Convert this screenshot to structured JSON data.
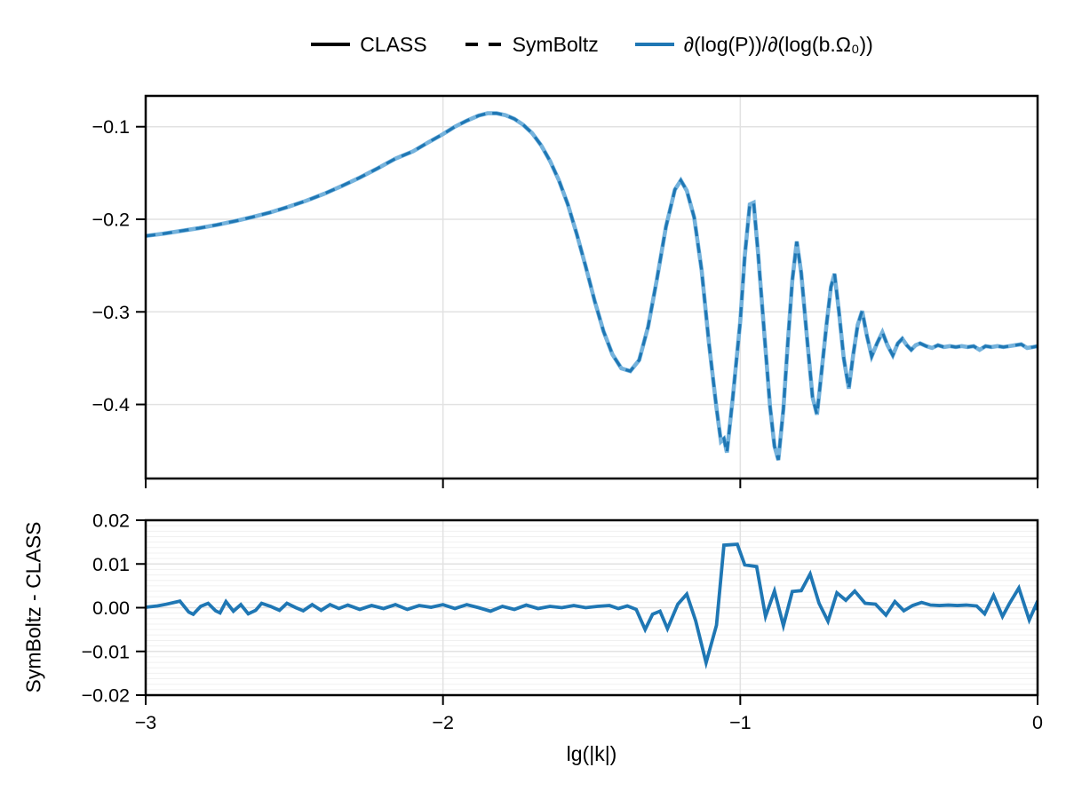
{
  "colors": {
    "class_line": "#74b2dc",
    "symboltz_line": "#1f77b4",
    "residual_line": "#1f77b4",
    "frame": "#000000",
    "grid_major": "#e2e2e2",
    "grid_minor": "#f0f0f0",
    "background": "#ffffff"
  },
  "legend": {
    "items": [
      {
        "label": "CLASS",
        "color": "#000000",
        "dash": null
      },
      {
        "label": "SymBoltz",
        "color": "#000000",
        "dash": "14 12"
      },
      {
        "label": "∂(log(P))/∂(log(b.Ω₀))",
        "color": "#1f77b4",
        "dash": null
      }
    ]
  },
  "chart_data": [
    {
      "type": "line",
      "panel": "main",
      "title": "",
      "xlabel": "",
      "ylabel": "",
      "xlim": [
        -3,
        0
      ],
      "ylim": [
        -0.48,
        -0.0667
      ],
      "grid": true,
      "legend_position": "top",
      "xticks": [
        {
          "v": -3,
          "label": "−3"
        },
        {
          "v": -2,
          "label": "−2"
        },
        {
          "v": -1,
          "label": "−1"
        },
        {
          "v": 0,
          "label": "0"
        }
      ],
      "show_xtick_labels": false,
      "yticks": [
        {
          "v": -0.1,
          "label": "−0.1"
        },
        {
          "v": -0.2,
          "label": "−0.2"
        },
        {
          "v": -0.3,
          "label": "−0.3"
        },
        {
          "v": -0.4,
          "label": "−0.4"
        }
      ],
      "series": [
        {
          "name": "CLASS",
          "color": "#74b2dc",
          "width": 4.6,
          "dash": null
        },
        {
          "name": "SymBoltz",
          "color": "#1f77b4",
          "width": 3.2,
          "dash": "11 8"
        }
      ],
      "points": {
        "x": [
          -3.0,
          -2.94,
          -2.88,
          -2.82,
          -2.76,
          -2.7,
          -2.64,
          -2.58,
          -2.52,
          -2.46,
          -2.4,
          -2.34,
          -2.28,
          -2.22,
          -2.16,
          -2.1,
          -2.05,
          -2.0,
          -1.96,
          -1.92,
          -1.88,
          -1.85,
          -1.82,
          -1.79,
          -1.76,
          -1.73,
          -1.7,
          -1.67,
          -1.64,
          -1.61,
          -1.58,
          -1.55,
          -1.52,
          -1.49,
          -1.46,
          -1.43,
          -1.4,
          -1.37,
          -1.34,
          -1.31,
          -1.28,
          -1.25,
          -1.22,
          -1.2,
          -1.18,
          -1.155,
          -1.13,
          -1.105,
          -1.08,
          -1.065,
          -1.055,
          -1.045,
          -1.025,
          -1.0,
          -0.985,
          -0.968,
          -0.955,
          -0.94,
          -0.92,
          -0.9,
          -0.885,
          -0.872,
          -0.855,
          -0.84,
          -0.825,
          -0.81,
          -0.795,
          -0.775,
          -0.757,
          -0.742,
          -0.727,
          -0.71,
          -0.695,
          -0.683,
          -0.668,
          -0.652,
          -0.635,
          -0.62,
          -0.605,
          -0.59,
          -0.574,
          -0.558,
          -0.54,
          -0.522,
          -0.505,
          -0.487,
          -0.47,
          -0.455,
          -0.44,
          -0.425,
          -0.41,
          -0.395,
          -0.375,
          -0.355,
          -0.335,
          -0.315,
          -0.295,
          -0.275,
          -0.255,
          -0.235,
          -0.215,
          -0.195,
          -0.175,
          -0.155,
          -0.135,
          -0.115,
          -0.095,
          -0.075,
          -0.055,
          -0.035,
          -0.015,
          0.0
        ],
        "y": [
          -0.218,
          -0.2155,
          -0.2125,
          -0.2095,
          -0.206,
          -0.202,
          -0.1975,
          -0.1925,
          -0.1865,
          -0.18,
          -0.1725,
          -0.164,
          -0.155,
          -0.145,
          -0.1345,
          -0.1265,
          -0.117,
          -0.108,
          -0.1,
          -0.0935,
          -0.088,
          -0.0855,
          -0.0855,
          -0.0875,
          -0.0915,
          -0.098,
          -0.107,
          -0.12,
          -0.137,
          -0.158,
          -0.184,
          -0.216,
          -0.251,
          -0.288,
          -0.321,
          -0.346,
          -0.361,
          -0.364,
          -0.352,
          -0.316,
          -0.264,
          -0.208,
          -0.168,
          -0.158,
          -0.169,
          -0.198,
          -0.255,
          -0.335,
          -0.404,
          -0.44,
          -0.437,
          -0.452,
          -0.392,
          -0.31,
          -0.24,
          -0.184,
          -0.182,
          -0.237,
          -0.32,
          -0.402,
          -0.445,
          -0.46,
          -0.405,
          -0.333,
          -0.266,
          -0.224,
          -0.258,
          -0.33,
          -0.392,
          -0.411,
          -0.366,
          -0.314,
          -0.273,
          -0.259,
          -0.3,
          -0.35,
          -0.383,
          -0.346,
          -0.314,
          -0.299,
          -0.326,
          -0.348,
          -0.334,
          -0.322,
          -0.336,
          -0.347,
          -0.334,
          -0.329,
          -0.336,
          -0.341,
          -0.336,
          -0.334,
          -0.337,
          -0.339,
          -0.336,
          -0.338,
          -0.337,
          -0.338,
          -0.337,
          -0.338,
          -0.337,
          -0.341,
          -0.337,
          -0.338,
          -0.337,
          -0.338,
          -0.337,
          -0.336,
          -0.335,
          -0.339,
          -0.338,
          -0.337
        ]
      }
    },
    {
      "type": "line",
      "panel": "residual",
      "title": "",
      "xlabel": "lg(|k|)",
      "ylabel": "SymBoltz - CLASS",
      "xlim": [
        -3,
        0
      ],
      "ylim": [
        -0.02,
        0.02
      ],
      "grid": true,
      "minor_grid_step": 0.00125,
      "xticks": [
        {
          "v": -3,
          "label": "−3"
        },
        {
          "v": -2,
          "label": "−2"
        },
        {
          "v": -1,
          "label": "−1"
        },
        {
          "v": 0,
          "label": "0"
        }
      ],
      "show_xtick_labels": true,
      "yticks": [
        {
          "v": 0.02,
          "label": "0.02"
        },
        {
          "v": 0.01,
          "label": "0.01"
        },
        {
          "v": 0.0,
          "label": "0.00"
        },
        {
          "v": -0.01,
          "label": "−0.01"
        },
        {
          "v": -0.02,
          "label": "−0.02"
        }
      ],
      "series": [
        {
          "name": "SymBoltz - CLASS",
          "color": "#1f77b4",
          "width": 3.8,
          "dash": null
        }
      ],
      "points": {
        "x": [
          -3.0,
          -2.96,
          -2.93,
          -2.885,
          -2.855,
          -2.84,
          -2.815,
          -2.79,
          -2.765,
          -2.75,
          -2.73,
          -2.705,
          -2.68,
          -2.655,
          -2.63,
          -2.61,
          -2.58,
          -2.55,
          -2.525,
          -2.495,
          -2.47,
          -2.44,
          -2.41,
          -2.38,
          -2.35,
          -2.32,
          -2.28,
          -2.24,
          -2.2,
          -2.16,
          -2.12,
          -2.08,
          -2.04,
          -2.0,
          -1.96,
          -1.92,
          -1.88,
          -1.84,
          -1.8,
          -1.76,
          -1.72,
          -1.68,
          -1.64,
          -1.6,
          -1.56,
          -1.52,
          -1.48,
          -1.44,
          -1.41,
          -1.38,
          -1.35,
          -1.32,
          -1.295,
          -1.27,
          -1.245,
          -1.21,
          -1.18,
          -1.15,
          -1.115,
          -1.08,
          -1.055,
          -1.01,
          -0.985,
          -0.945,
          -0.915,
          -0.885,
          -0.855,
          -0.825,
          -0.795,
          -0.765,
          -0.735,
          -0.705,
          -0.675,
          -0.645,
          -0.615,
          -0.58,
          -0.545,
          -0.51,
          -0.48,
          -0.45,
          -0.42,
          -0.39,
          -0.36,
          -0.33,
          -0.3,
          -0.27,
          -0.24,
          -0.205,
          -0.178,
          -0.148,
          -0.118,
          -0.095,
          -0.063,
          -0.028,
          -0.005,
          0.0
        ],
        "y": [
          0.0001,
          0.0004,
          0.0008,
          0.0015,
          -0.001,
          -0.0015,
          0.0003,
          0.001,
          -0.0007,
          -0.0012,
          0.0014,
          -0.0008,
          0.0007,
          -0.0014,
          -0.0006,
          0.001,
          0.0003,
          -0.0006,
          0.001,
          0.0,
          -0.0007,
          0.0007,
          -0.0006,
          0.0007,
          -0.0002,
          0.0006,
          -0.0004,
          0.0005,
          -0.0002,
          0.0007,
          -0.0004,
          0.0005,
          0.0001,
          0.0007,
          -0.0002,
          0.0007,
          0.0,
          -0.0008,
          0.0003,
          -0.0004,
          0.0006,
          -0.0002,
          0.0003,
          0.0,
          0.0005,
          0.0,
          0.0003,
          0.0005,
          -0.0002,
          0.0004,
          -0.0004,
          -0.005,
          -0.0015,
          -0.0008,
          -0.0048,
          0.0008,
          0.0031,
          -0.003,
          -0.0126,
          -0.004,
          0.0143,
          0.0145,
          0.0098,
          0.0094,
          -0.002,
          0.0038,
          -0.0041,
          0.0037,
          0.0039,
          0.0077,
          0.001,
          -0.0031,
          0.0034,
          0.0017,
          0.0038,
          0.001,
          0.0008,
          -0.0017,
          0.0014,
          -0.0007,
          0.0005,
          0.0012,
          0.0006,
          0.0005,
          0.0006,
          0.0005,
          0.0006,
          0.0004,
          -0.0014,
          0.0028,
          -0.002,
          0.0009,
          0.0045,
          -0.0028,
          0.0007,
          -0.0005
        ]
      }
    }
  ]
}
